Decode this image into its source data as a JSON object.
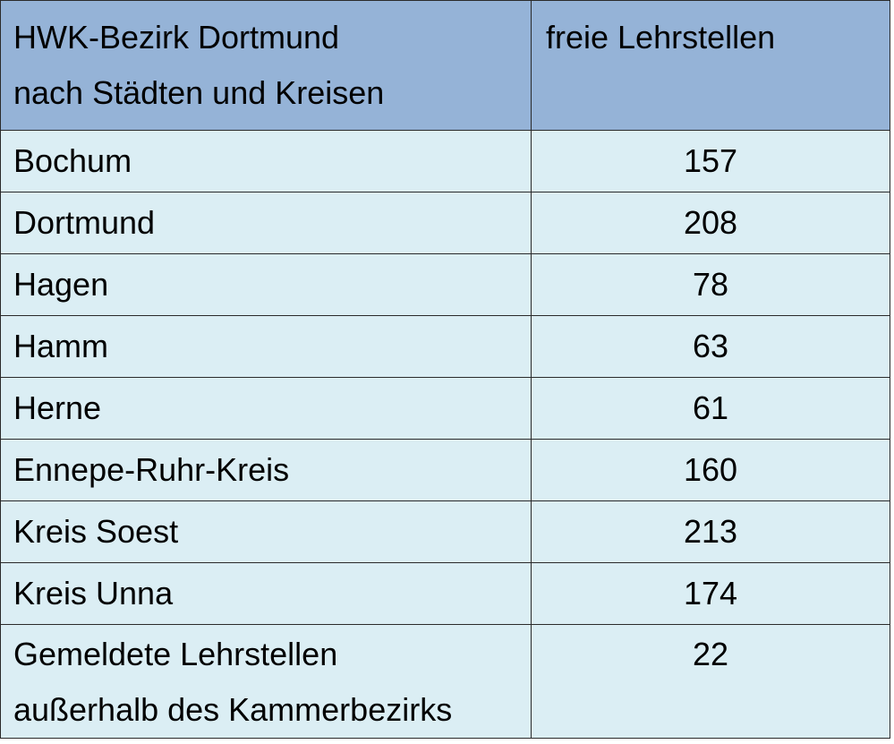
{
  "header": {
    "col1_line1": "HWK-Bezirk Dortmund",
    "col1_line2": "nach Städten und Kreisen",
    "col2": "freie Lehrstellen"
  },
  "rows": [
    {
      "name": "Bochum",
      "value": "157"
    },
    {
      "name": "Dortmund",
      "value": "208"
    },
    {
      "name": "Hagen",
      "value": "78"
    },
    {
      "name": "Hamm",
      "value": "63"
    },
    {
      "name": "Herne",
      "value": "61"
    },
    {
      "name": "Ennepe-Ruhr-Kreis",
      "value": "160"
    },
    {
      "name": "Kreis Soest",
      "value": "213"
    },
    {
      "name": "Kreis Unna",
      "value": "174"
    }
  ],
  "last_row": {
    "line1": "Gemeldete Lehrstellen",
    "line2": "außerhalb des Kammerbezirks",
    "value": "22"
  },
  "colors": {
    "header_bg": "#95b3d7",
    "row_bg": "#dbeef4",
    "border": "#2a2a2a"
  }
}
